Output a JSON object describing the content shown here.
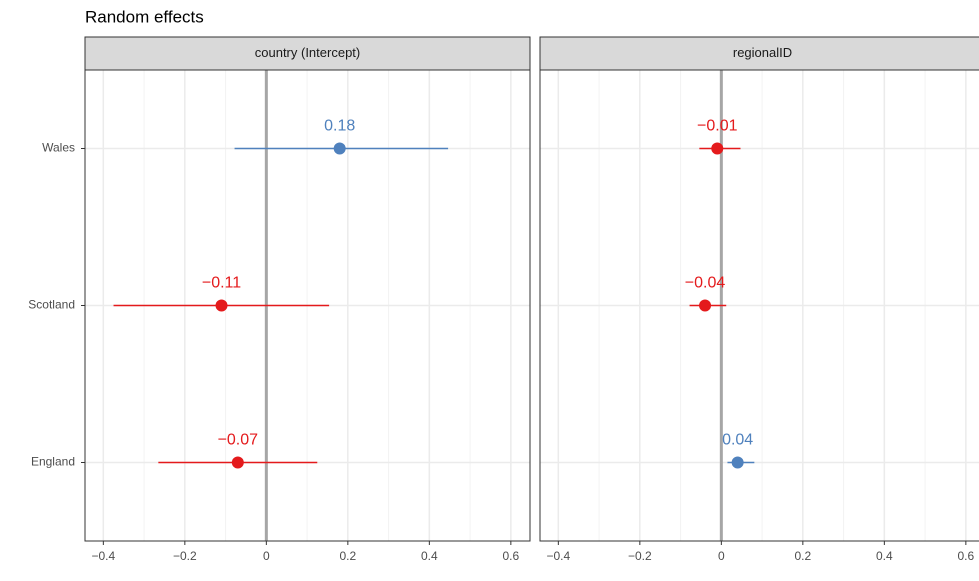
{
  "chart_data": {
    "type": "forest",
    "title": "Random effects",
    "categories": [
      "Wales",
      "Scotland",
      "England"
    ],
    "xlim": [
      -0.445,
      0.647
    ],
    "xticks": [
      {
        "value": -0.4,
        "label": "−0.4"
      },
      {
        "value": -0.2,
        "label": "−0.2"
      },
      0,
      0.2,
      0.4,
      0.6
    ],
    "grid": true,
    "panels": [
      {
        "title": "country (Intercept)",
        "values": [
          0.18,
          -0.11,
          -0.07
        ],
        "lower": [
          -0.078,
          -0.375,
          -0.265
        ],
        "upper": [
          0.446,
          0.154,
          0.125
        ],
        "value_labels": [
          "0.18",
          "−0.11",
          "−0.07"
        ],
        "colors": [
          "#4f81bd",
          "#e41a1c",
          "#e41a1c"
        ]
      },
      {
        "title": "regionalID",
        "values": [
          -0.01,
          -0.04,
          0.04
        ],
        "lower": [
          -0.054,
          -0.078,
          0.015
        ],
        "upper": [
          0.047,
          0.012,
          0.081
        ],
        "value_labels": [
          "−0.01",
          "−0.04",
          "0.04"
        ],
        "colors": [
          "#e41a1c",
          "#e41a1c",
          "#4f81bd"
        ]
      }
    ]
  }
}
